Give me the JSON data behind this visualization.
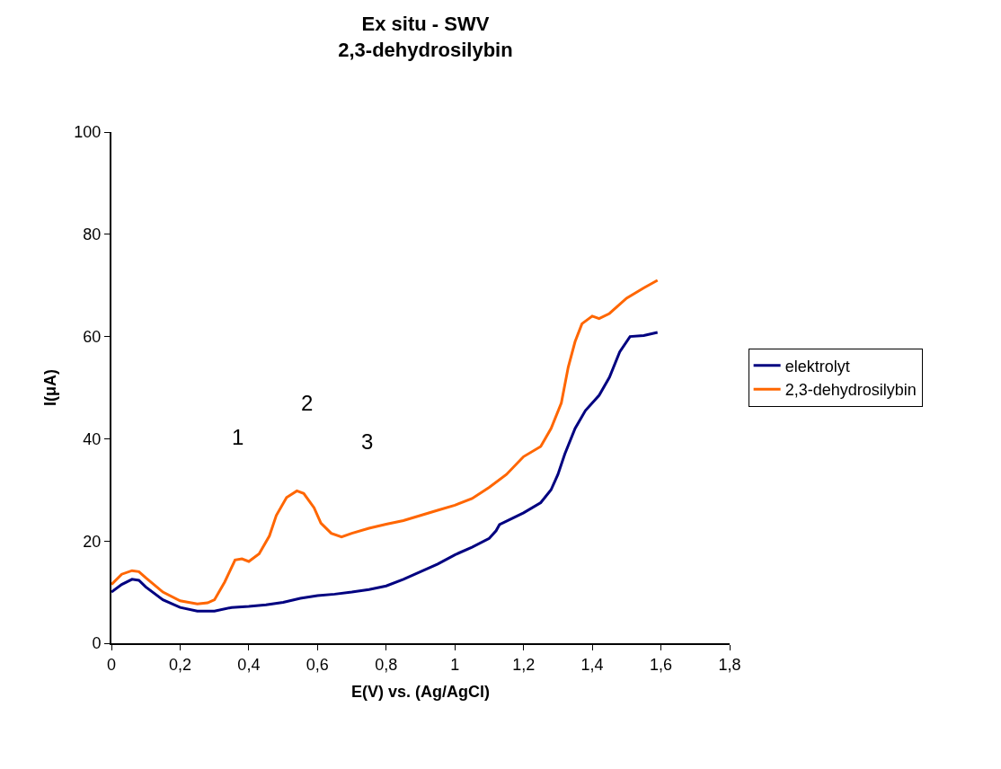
{
  "chart_data": {
    "type": "line",
    "title": "Ex situ - SWV\n2,3-dehydrosilybin",
    "xlabel": "E(V) vs. (Ag/AgCl)",
    "ylabel": "I(μA)",
    "xlim": [
      0,
      1.8
    ],
    "xticks": [
      0,
      {
        "value": 0.2,
        "label": "0,2"
      },
      {
        "value": 0.4,
        "label": "0,4"
      },
      {
        "value": 0.6,
        "label": "0,6"
      },
      {
        "value": 0.8,
        "label": "0,8"
      },
      1,
      {
        "value": 1.2,
        "label": "1,2"
      },
      {
        "value": 1.4,
        "label": "1,4"
      },
      {
        "value": 1.6,
        "label": "1,6"
      },
      {
        "value": 1.8,
        "label": "1,8"
      }
    ],
    "ylim": [
      0,
      100
    ],
    "yticks": [
      0,
      20,
      40,
      60,
      80,
      100
    ],
    "legend": "right",
    "marker": "none",
    "line_style": "solid",
    "series": [
      {
        "name": "elektrolyt",
        "color": "#000080",
        "x": [
          0,
          0.03,
          0.06,
          0.08,
          0.1,
          0.15,
          0.2,
          0.25,
          0.3,
          0.35,
          0.4,
          0.45,
          0.5,
          0.55,
          0.6,
          0.65,
          0.7,
          0.75,
          0.8,
          0.85,
          0.9,
          0.95,
          1.0,
          1.05,
          1.1,
          1.12,
          1.13,
          1.2,
          1.25,
          1.28,
          1.3,
          1.32,
          1.35,
          1.38,
          1.42,
          1.45,
          1.48,
          1.51,
          1.55,
          1.59
        ],
        "values": [
          10,
          11.5,
          12.5,
          12.3,
          11,
          8.5,
          7,
          6.3,
          6.3,
          7,
          7.2,
          7.5,
          8,
          8.8,
          9.3,
          9.6,
          10,
          10.5,
          11.2,
          12.5,
          14,
          15.5,
          17.3,
          18.8,
          20.5,
          22,
          23.2,
          25.5,
          27.5,
          30,
          33,
          37,
          42,
          45.5,
          48.5,
          52,
          57,
          60,
          60.2,
          60.8
        ]
      },
      {
        "name": "2,3-dehydrosilybin",
        "color": "#ff6600",
        "x": [
          0,
          0.03,
          0.06,
          0.08,
          0.1,
          0.15,
          0.2,
          0.25,
          0.28,
          0.3,
          0.33,
          0.36,
          0.38,
          0.4,
          0.43,
          0.46,
          0.48,
          0.51,
          0.54,
          0.56,
          0.59,
          0.61,
          0.64,
          0.67,
          0.7,
          0.75,
          0.8,
          0.85,
          0.9,
          0.95,
          1.0,
          1.05,
          1.1,
          1.15,
          1.2,
          1.25,
          1.28,
          1.31,
          1.33,
          1.35,
          1.37,
          1.4,
          1.42,
          1.45,
          1.5,
          1.55,
          1.59
        ],
        "values": [
          11.5,
          13.5,
          14.2,
          14,
          12.8,
          10,
          8.3,
          7.7,
          7.9,
          8.5,
          12,
          16.3,
          16.5,
          16,
          17.5,
          21,
          25,
          28.5,
          29.8,
          29.3,
          26.5,
          23.5,
          21.5,
          20.8,
          21.5,
          22.5,
          23.3,
          24,
          25,
          26,
          27,
          28.3,
          30.5,
          33,
          36.5,
          38.5,
          42,
          47,
          54,
          59,
          62.5,
          64,
          63.5,
          64.5,
          67.5,
          69.5,
          71
        ]
      }
    ],
    "annotations": [
      "1",
      "2",
      "3"
    ]
  }
}
